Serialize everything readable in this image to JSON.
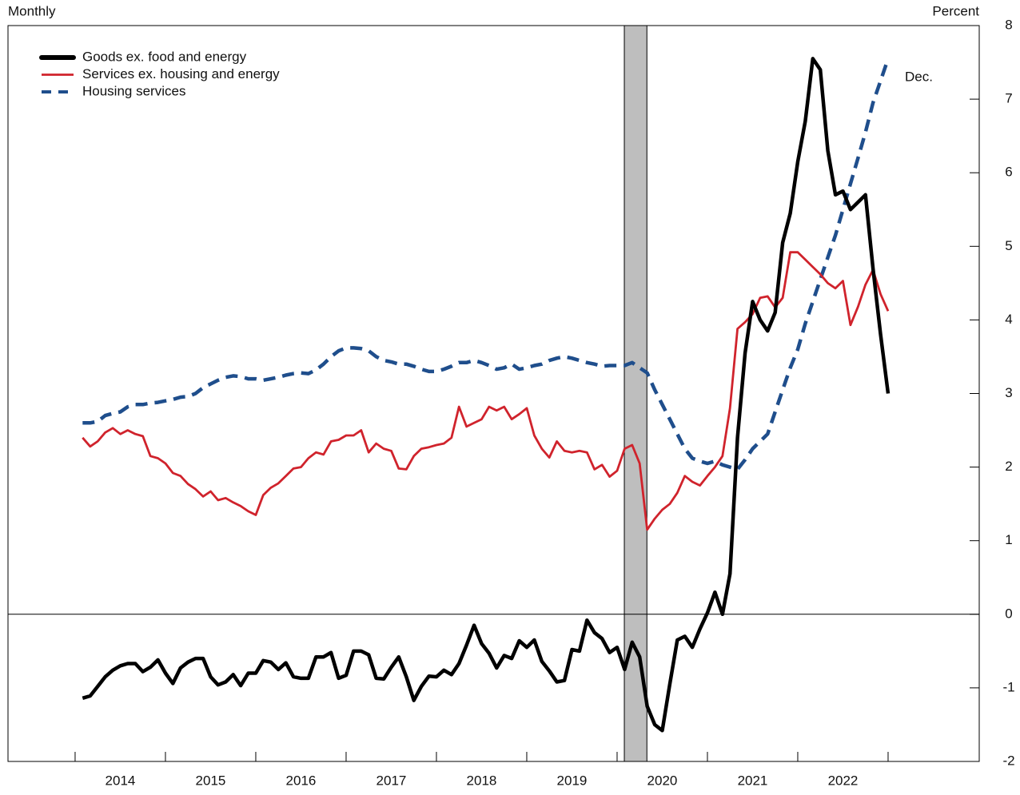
{
  "chart_data": {
    "type": "line",
    "left_label": "Monthly",
    "right_label": "Percent",
    "annotation": "Dec.",
    "xlim": [
      2013.257,
      2024.009
    ],
    "xtick_marks": [
      2014,
      2015,
      2016,
      2017,
      2018,
      2019,
      2020,
      2021,
      2022,
      2023
    ],
    "xticks": [
      {
        "value": 2014.5,
        "label": "2014"
      },
      {
        "value": 2015.5,
        "label": "2015"
      },
      {
        "value": 2016.5,
        "label": "2016"
      },
      {
        "value": 2017.5,
        "label": "2017"
      },
      {
        "value": 2018.5,
        "label": "2018"
      },
      {
        "value": 2019.5,
        "label": "2019"
      },
      {
        "value": 2020.5,
        "label": "2020"
      },
      {
        "value": 2021.5,
        "label": "2021"
      },
      {
        "value": 2022.5,
        "label": "2022"
      }
    ],
    "ylim": [
      -2,
      8
    ],
    "yticks": [
      -2,
      -1,
      0,
      1,
      2,
      3,
      4,
      5,
      6,
      7,
      8
    ],
    "zero_line": 0,
    "recession": [
      2020.08,
      2020.33
    ],
    "x": [
      2014.083,
      2014.167,
      2014.25,
      2014.333,
      2014.417,
      2014.5,
      2014.583,
      2014.667,
      2014.75,
      2014.833,
      2014.917,
      2015.0,
      2015.083,
      2015.167,
      2015.25,
      2015.333,
      2015.417,
      2015.5,
      2015.583,
      2015.667,
      2015.75,
      2015.833,
      2015.917,
      2016.0,
      2016.083,
      2016.167,
      2016.25,
      2016.333,
      2016.417,
      2016.5,
      2016.583,
      2016.667,
      2016.75,
      2016.833,
      2016.917,
      2017.0,
      2017.083,
      2017.167,
      2017.25,
      2017.333,
      2017.417,
      2017.5,
      2017.583,
      2017.667,
      2017.75,
      2017.833,
      2017.917,
      2018.0,
      2018.083,
      2018.167,
      2018.25,
      2018.333,
      2018.417,
      2018.5,
      2018.583,
      2018.667,
      2018.75,
      2018.833,
      2018.917,
      2019.0,
      2019.083,
      2019.167,
      2019.25,
      2019.333,
      2019.417,
      2019.5,
      2019.583,
      2019.667,
      2019.75,
      2019.833,
      2019.917,
      2020.0,
      2020.083,
      2020.167,
      2020.25,
      2020.333,
      2020.417,
      2020.5,
      2020.583,
      2020.667,
      2020.75,
      2020.833,
      2020.917,
      2021.0,
      2021.083,
      2021.167,
      2021.25,
      2021.333,
      2021.417,
      2021.5,
      2021.583,
      2021.667,
      2021.75,
      2021.833,
      2021.917,
      2022.0,
      2022.083,
      2022.167,
      2022.25,
      2022.333,
      2022.417,
      2022.5,
      2022.583,
      2022.667,
      2022.75,
      2022.833,
      2022.917,
      2023.0
    ],
    "series": [
      {
        "name": "Goods ex. food and energy",
        "color": "#000000",
        "style": "solid",
        "values": [
          -1.14,
          -1.11,
          -0.98,
          -0.85,
          -0.76,
          -0.7,
          -0.67,
          -0.67,
          -0.78,
          -0.72,
          -0.62,
          -0.8,
          -0.94,
          -0.73,
          -0.65,
          -0.6,
          -0.6,
          -0.85,
          -0.96,
          -0.92,
          -0.82,
          -0.97,
          -0.8,
          -0.8,
          -0.63,
          -0.65,
          -0.75,
          -0.66,
          -0.85,
          -0.87,
          -0.87,
          -0.58,
          -0.58,
          -0.52,
          -0.87,
          -0.83,
          -0.5,
          -0.5,
          -0.55,
          -0.87,
          -0.88,
          -0.72,
          -0.58,
          -0.85,
          -1.17,
          -0.98,
          -0.84,
          -0.85,
          -0.76,
          -0.82,
          -0.67,
          -0.42,
          -0.15,
          -0.4,
          -0.53,
          -0.73,
          -0.56,
          -0.6,
          -0.36,
          -0.45,
          -0.35,
          -0.64,
          -0.77,
          -0.92,
          -0.9,
          -0.48,
          -0.5,
          -0.08,
          -0.25,
          -0.33,
          -0.52,
          -0.45,
          -0.75,
          -0.38,
          -0.58,
          -1.25,
          -1.5,
          -1.58,
          -0.95,
          -0.35,
          -0.3,
          -0.45,
          -0.2,
          0.02,
          0.3,
          0.0,
          0.55,
          2.4,
          3.55,
          4.25,
          4.0,
          3.85,
          4.1,
          5.05,
          5.45,
          6.15,
          6.7,
          7.55,
          7.4,
          6.3,
          5.7,
          5.75,
          5.5,
          5.6,
          5.7,
          4.7,
          3.8,
          3.0
        ]
      },
      {
        "name": "Services ex. housing and energy",
        "color": "#d0232c",
        "style": "solid",
        "values": [
          2.4,
          2.28,
          2.35,
          2.47,
          2.53,
          2.45,
          2.5,
          2.45,
          2.42,
          2.15,
          2.12,
          2.05,
          1.92,
          1.88,
          1.77,
          1.7,
          1.6,
          1.67,
          1.55,
          1.58,
          1.52,
          1.47,
          1.4,
          1.35,
          1.62,
          1.72,
          1.78,
          1.88,
          1.98,
          2.0,
          2.12,
          2.2,
          2.17,
          2.35,
          2.37,
          2.43,
          2.43,
          2.5,
          2.2,
          2.32,
          2.25,
          2.22,
          1.98,
          1.97,
          2.15,
          2.25,
          2.27,
          2.3,
          2.32,
          2.4,
          2.82,
          2.55,
          2.6,
          2.65,
          2.82,
          2.77,
          2.82,
          2.65,
          2.72,
          2.8,
          2.43,
          2.25,
          2.13,
          2.35,
          2.22,
          2.2,
          2.22,
          2.2,
          1.97,
          2.03,
          1.87,
          1.95,
          2.25,
          2.3,
          2.05,
          1.15,
          1.3,
          1.42,
          1.5,
          1.65,
          1.88,
          1.8,
          1.75,
          1.88,
          2.0,
          2.15,
          2.8,
          3.88,
          3.97,
          4.08,
          4.3,
          4.32,
          4.17,
          4.3,
          4.92,
          4.92,
          4.82,
          4.72,
          4.62,
          4.5,
          4.43,
          4.53,
          3.93,
          4.18,
          4.48,
          4.68,
          4.35,
          4.12
        ]
      },
      {
        "name": "Housing services",
        "color": "#1f4e8c",
        "style": "dashed",
        "values": [
          2.6,
          2.6,
          2.62,
          2.7,
          2.73,
          2.75,
          2.82,
          2.85,
          2.85,
          2.87,
          2.88,
          2.9,
          2.92,
          2.95,
          2.96,
          3.0,
          3.08,
          3.13,
          3.18,
          3.22,
          3.24,
          3.23,
          3.2,
          3.2,
          3.18,
          3.2,
          3.22,
          3.25,
          3.27,
          3.28,
          3.27,
          3.32,
          3.4,
          3.5,
          3.58,
          3.62,
          3.62,
          3.61,
          3.58,
          3.5,
          3.45,
          3.43,
          3.4,
          3.4,
          3.37,
          3.33,
          3.3,
          3.3,
          3.33,
          3.37,
          3.42,
          3.42,
          3.45,
          3.42,
          3.38,
          3.33,
          3.35,
          3.4,
          3.33,
          3.35,
          3.38,
          3.4,
          3.45,
          3.48,
          3.5,
          3.48,
          3.45,
          3.42,
          3.4,
          3.37,
          3.38,
          3.38,
          3.38,
          3.42,
          3.35,
          3.28,
          3.05,
          2.85,
          2.65,
          2.45,
          2.25,
          2.12,
          2.08,
          2.05,
          2.08,
          2.03,
          2.0,
          1.97,
          2.1,
          2.25,
          2.35,
          2.45,
          2.75,
          3.05,
          3.35,
          3.6,
          3.95,
          4.25,
          4.55,
          4.85,
          5.15,
          5.5,
          5.85,
          6.2,
          6.55,
          6.95,
          7.25,
          7.55
        ]
      }
    ]
  }
}
